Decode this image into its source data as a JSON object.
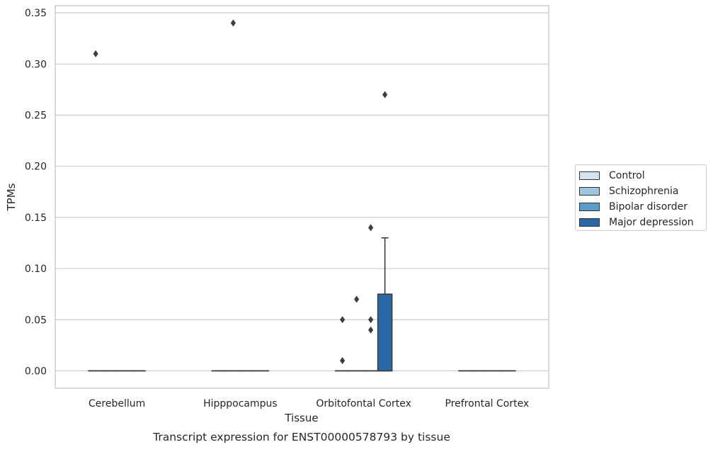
{
  "chart_data": {
    "type": "box",
    "xlabel": "Tissue",
    "ylabel": "TPMs",
    "caption": "Transcript expression for ENST00000578793 by tissue",
    "categories": [
      "Cerebellum",
      "Hipppocampus",
      "Orbitofontal Cortex",
      "Prefrontal Cortex"
    ],
    "ylim": [
      -0.017,
      0.357
    ],
    "yticks": [
      "0.00",
      "0.05",
      "0.10",
      "0.15",
      "0.20",
      "0.25",
      "0.30",
      "0.35"
    ],
    "grid": true,
    "legend_position": "right",
    "series": [
      {
        "name": "Control",
        "color": "#d3e3f1",
        "boxes": [
          {
            "category": "Cerebellum",
            "q1": 0,
            "median": 0,
            "q3": 0,
            "whisker_low": 0,
            "whisker_high": 0,
            "outliers": [
              0.31
            ]
          },
          {
            "category": "Hipppocampus",
            "q1": 0,
            "median": 0,
            "q3": 0,
            "whisker_low": 0,
            "whisker_high": 0,
            "outliers": []
          },
          {
            "category": "Orbitofontal Cortex",
            "q1": 0,
            "median": 0,
            "q3": 0,
            "whisker_low": 0,
            "whisker_high": 0,
            "outliers": [
              0.01,
              0.05
            ]
          },
          {
            "category": "Prefrontal Cortex",
            "q1": 0,
            "median": 0,
            "q3": 0,
            "whisker_low": 0,
            "whisker_high": 0,
            "outliers": []
          }
        ]
      },
      {
        "name": "Schizophrenia",
        "color": "#9ec6df",
        "boxes": [
          {
            "category": "Cerebellum",
            "q1": 0,
            "median": 0,
            "q3": 0,
            "whisker_low": 0,
            "whisker_high": 0,
            "outliers": []
          },
          {
            "category": "Hipppocampus",
            "q1": 0,
            "median": 0,
            "q3": 0,
            "whisker_low": 0,
            "whisker_high": 0,
            "outliers": [
              0.34
            ]
          },
          {
            "category": "Orbitofontal Cortex",
            "q1": 0,
            "median": 0,
            "q3": 0,
            "whisker_low": 0,
            "whisker_high": 0,
            "outliers": [
              0.07
            ]
          },
          {
            "category": "Prefrontal Cortex",
            "q1": 0,
            "median": 0,
            "q3": 0,
            "whisker_low": 0,
            "whisker_high": 0,
            "outliers": []
          }
        ]
      },
      {
        "name": "Bipolar disorder",
        "color": "#5b9cc9",
        "boxes": [
          {
            "category": "Cerebellum",
            "q1": 0,
            "median": 0,
            "q3": 0,
            "whisker_low": 0,
            "whisker_high": 0,
            "outliers": []
          },
          {
            "category": "Hipppocampus",
            "q1": 0,
            "median": 0,
            "q3": 0,
            "whisker_low": 0,
            "whisker_high": 0,
            "outliers": []
          },
          {
            "category": "Orbitofontal Cortex",
            "q1": 0,
            "median": 0,
            "q3": 0,
            "whisker_low": 0,
            "whisker_high": 0,
            "outliers": [
              0.04,
              0.05,
              0.14
            ]
          },
          {
            "category": "Prefrontal Cortex",
            "q1": 0,
            "median": 0,
            "q3": 0,
            "whisker_low": 0,
            "whisker_high": 0,
            "outliers": []
          }
        ]
      },
      {
        "name": "Major depression",
        "color": "#2a68a6",
        "boxes": [
          {
            "category": "Cerebellum",
            "q1": 0,
            "median": 0,
            "q3": 0,
            "whisker_low": 0,
            "whisker_high": 0,
            "outliers": []
          },
          {
            "category": "Hipppocampus",
            "q1": 0,
            "median": 0,
            "q3": 0,
            "whisker_low": 0,
            "whisker_high": 0,
            "outliers": []
          },
          {
            "category": "Orbitofontal Cortex",
            "q1": 0,
            "median": 0,
            "q3": 0.075,
            "whisker_low": 0,
            "whisker_high": 0.13,
            "outliers": [
              0.27
            ]
          },
          {
            "category": "Prefrontal Cortex",
            "q1": 0,
            "median": 0,
            "q3": 0,
            "whisker_low": 0,
            "whisker_high": 0,
            "outliers": []
          }
        ]
      }
    ]
  }
}
